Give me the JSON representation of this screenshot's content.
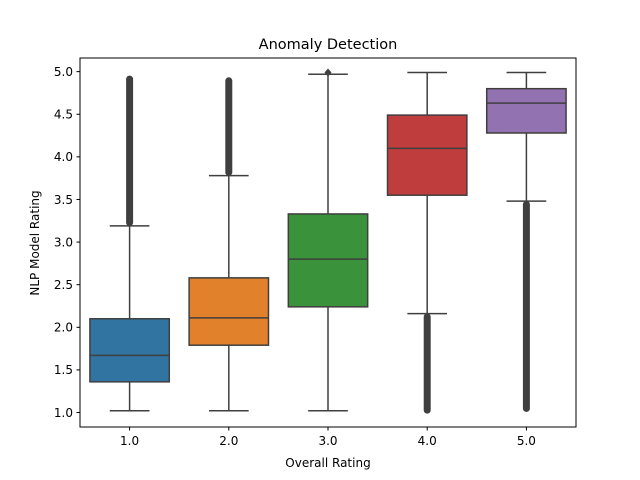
{
  "chart_data": {
    "type": "box",
    "title": "Anomaly Detection",
    "xlabel": "Overall Rating",
    "ylabel": "NLP Model Rating",
    "categories": [
      "1.0",
      "2.0",
      "3.0",
      "4.0",
      "5.0"
    ],
    "ylim": [
      0.83,
      5.16
    ],
    "yticks": [
      "1.0",
      "1.5",
      "2.0",
      "2.5",
      "3.0",
      "3.5",
      "4.0",
      "4.5",
      "5.0"
    ],
    "grid": false,
    "boxes": [
      {
        "category": "1.0",
        "color": "#3274a1",
        "whisker_low": 1.02,
        "q1": 1.36,
        "median": 1.67,
        "q3": 2.1,
        "whisker_high": 3.19,
        "outliers_range": [
          3.21,
          4.93
        ]
      },
      {
        "category": "2.0",
        "color": "#e1812c",
        "whisker_low": 1.02,
        "q1": 1.79,
        "median": 2.11,
        "q3": 2.58,
        "whisker_high": 3.78,
        "outliers_range": [
          3.8,
          4.91
        ]
      },
      {
        "category": "3.0",
        "color": "#3a923a",
        "whisker_low": 1.02,
        "q1": 2.24,
        "median": 2.8,
        "q3": 3.33,
        "whisker_high": 4.97,
        "outliers_range": [
          4.99,
          4.99
        ]
      },
      {
        "category": "4.0",
        "color": "#c03d3e",
        "whisker_low": 2.16,
        "q1": 3.55,
        "median": 4.1,
        "q3": 4.49,
        "whisker_high": 4.99,
        "outliers_range": [
          1.01,
          2.14
        ]
      },
      {
        "category": "5.0",
        "color": "#9372b2",
        "whisker_low": 3.48,
        "q1": 4.28,
        "median": 4.63,
        "q3": 4.8,
        "whisker_high": 4.99,
        "outliers_range": [
          1.03,
          3.46
        ]
      }
    ]
  }
}
